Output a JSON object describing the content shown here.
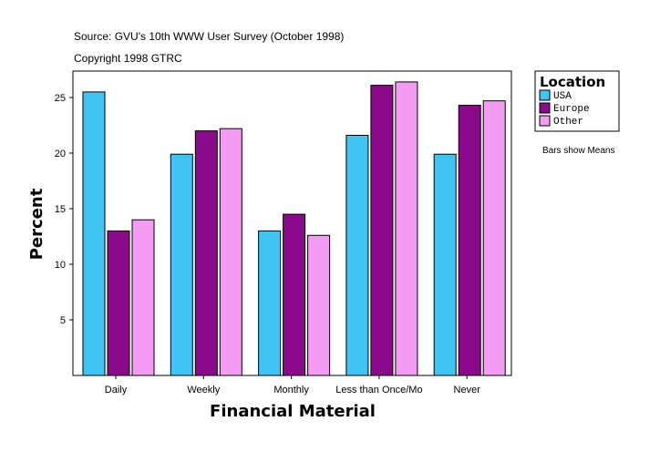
{
  "source": "Source: GVU's 10th WWW User Survey (October 1998)",
  "copyright": "Copyright 1998 GTRC",
  "note": "Bars show Means",
  "chart_data": {
    "type": "bar",
    "title": "",
    "xlabel": "Financial Material",
    "ylabel": "Percent",
    "categories": [
      "Daily",
      "Weekly",
      "Monthly",
      "Less than Once/Mo",
      "Never"
    ],
    "yticks": [
      5,
      10,
      15,
      20,
      25
    ],
    "ylim": [
      0,
      27.4
    ],
    "grid": false,
    "legend": {
      "title": "Location",
      "placement": "right"
    },
    "series": [
      {
        "name": "USA",
        "color": "#40c4f4",
        "values": [
          25.5,
          19.9,
          13.0,
          21.6,
          19.9
        ]
      },
      {
        "name": "Europe",
        "color": "#8b0a8b",
        "values": [
          13.0,
          22.0,
          14.5,
          26.1,
          24.3
        ]
      },
      {
        "name": "Other",
        "color": "#f49cf4",
        "values": [
          14.0,
          22.2,
          12.6,
          26.4,
          24.7
        ]
      }
    ]
  }
}
